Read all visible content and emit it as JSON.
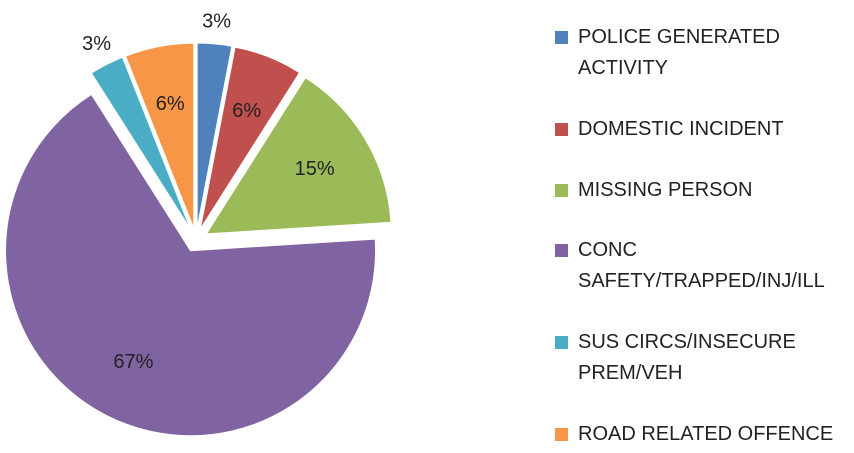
{
  "chart_data": {
    "type": "pie",
    "categories": [
      "POLICE GENERATED ACTIVITY",
      "DOMESTIC INCIDENT",
      "MISSING PERSON",
      "CONC SAFETY/TRAPPED/INJ/ILL",
      "SUS CIRCS/INSECURE PREM/VEH",
      "ROAD RELATED OFFENCE"
    ],
    "values": [
      3,
      6,
      15,
      67,
      3,
      6
    ],
    "value_labels": [
      "3%",
      "6%",
      "15%",
      "67%",
      "3%",
      "6%"
    ],
    "colors": [
      "#4f81bd",
      "#c0504d",
      "#9bbb59",
      "#8064a2",
      "#4bacc6",
      "#f79646"
    ],
    "legend": "right"
  }
}
